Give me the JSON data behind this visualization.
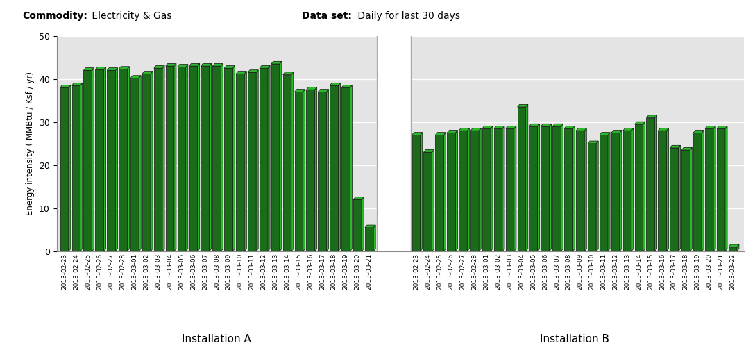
{
  "commodity_label_bold": "Commodity:",
  "commodity_label_normal": " Electricity & Gas",
  "dataset_label_bold": "Data set:",
  "dataset_label_normal": " Daily for last 30 days",
  "ylabel": "Energy intensity ( MMBtu / Ksf / yr)",
  "xlabel_a": "Installation A",
  "xlabel_b": "Installation B",
  "ylim": [
    0,
    50
  ],
  "yticks": [
    0,
    10,
    20,
    30,
    40,
    50
  ],
  "installation_a": {
    "dates": [
      "2013-02-23",
      "2013-02-24",
      "2013-02-25",
      "2013-02-26",
      "2013-02-27",
      "2013-02-28",
      "2013-03-01",
      "2013-03-02",
      "2013-03-03",
      "2013-03-04",
      "2013-03-05",
      "2013-03-06",
      "2013-03-07",
      "2013-03-08",
      "2013-03-09",
      "2013-03-10",
      "2013-03-11",
      "2013-03-12",
      "2013-03-13",
      "2013-03-14",
      "2013-03-15",
      "2013-03-16",
      "2013-03-17",
      "2013-03-18",
      "2013-03-19",
      "2013-03-20",
      "2013-03-21"
    ],
    "values": [
      38.0,
      38.5,
      42.0,
      42.2,
      42.0,
      42.3,
      40.2,
      41.2,
      42.5,
      43.0,
      42.8,
      43.0,
      43.0,
      43.0,
      42.5,
      41.2,
      41.5,
      42.5,
      43.5,
      41.0,
      37.0,
      37.5,
      37.0,
      38.5,
      38.0,
      12.0,
      5.5
    ]
  },
  "installation_b": {
    "dates": [
      "2013-02-23",
      "2013-02-24",
      "2013-02-25",
      "2013-02-26",
      "2013-02-27",
      "2013-02-28",
      "2013-03-01",
      "2013-03-02",
      "2013-03-03",
      "2013-03-04",
      "2013-03-05",
      "2013-03-06",
      "2013-03-07",
      "2013-03-08",
      "2013-03-09",
      "2013-03-10",
      "2013-03-11",
      "2013-03-12",
      "2013-03-13",
      "2013-03-14",
      "2013-03-15",
      "2013-03-16",
      "2013-03-17",
      "2013-03-18",
      "2013-03-19",
      "2013-03-20",
      "2013-03-21",
      "2013-03-22"
    ],
    "values": [
      27.0,
      23.0,
      27.0,
      27.5,
      28.0,
      28.0,
      28.5,
      28.5,
      28.5,
      33.5,
      29.0,
      29.0,
      29.0,
      28.5,
      28.0,
      25.0,
      27.0,
      27.5,
      28.0,
      29.5,
      31.0,
      28.0,
      24.0,
      23.5,
      27.5,
      28.5,
      28.5,
      1.0
    ]
  },
  "bar_dark_color": "#1a6b1a",
  "bar_light_color": "#2db82d",
  "bar_edge_color": "#111111",
  "plot_bg_color_main": "#e4e4e4",
  "plot_bg_color_white": "#f5f5f5",
  "fig_bg_color": "#ffffff",
  "grid_color": "#ffffff",
  "separator_bg": "#f0f0f0"
}
